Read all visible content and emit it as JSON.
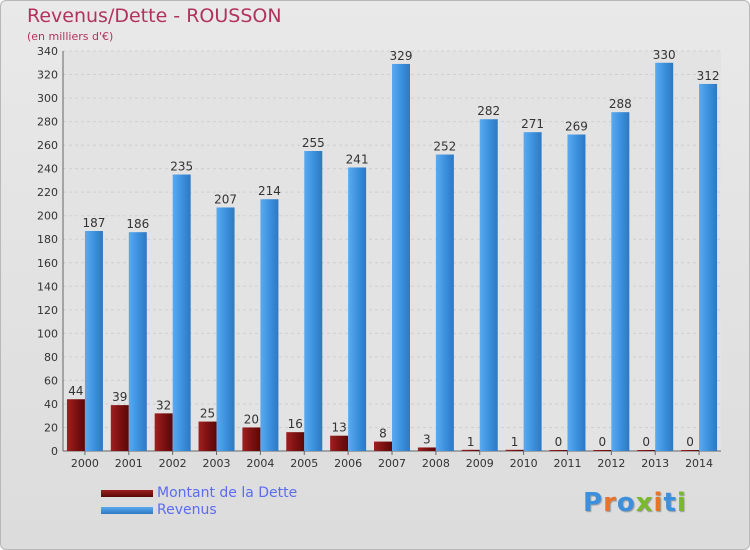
{
  "chart_data": {
    "type": "bar",
    "title": "Revenus/Dette - ROUSSON",
    "subtitle": "(en milliers d'€)",
    "categories": [
      "2000",
      "2001",
      "2002",
      "2003",
      "2004",
      "2005",
      "2006",
      "2007",
      "2008",
      "2009",
      "2010",
      "2011",
      "2012",
      "2013",
      "2014"
    ],
    "series": [
      {
        "name": "Montant de la Dette",
        "color": "#7a1010",
        "values": [
          44,
          39,
          32,
          25,
          20,
          16,
          13,
          8,
          3,
          1,
          1,
          0,
          0,
          0,
          0
        ]
      },
      {
        "name": "Revenus",
        "color": "#3c8fdc",
        "values": [
          187,
          186,
          235,
          207,
          214,
          255,
          241,
          329,
          252,
          282,
          271,
          269,
          288,
          330,
          312
        ]
      }
    ],
    "ylim": [
      0,
      340
    ],
    "ytick_step": 20,
    "grid": true,
    "legend_position": "bottom-left"
  },
  "logo": {
    "text": "Proxiti",
    "colors": [
      "#3c8fdc",
      "#e8732a",
      "#3c8fdc",
      "#7ab82e",
      "#e8732a",
      "#3c8fdc",
      "#7ab82e"
    ]
  }
}
